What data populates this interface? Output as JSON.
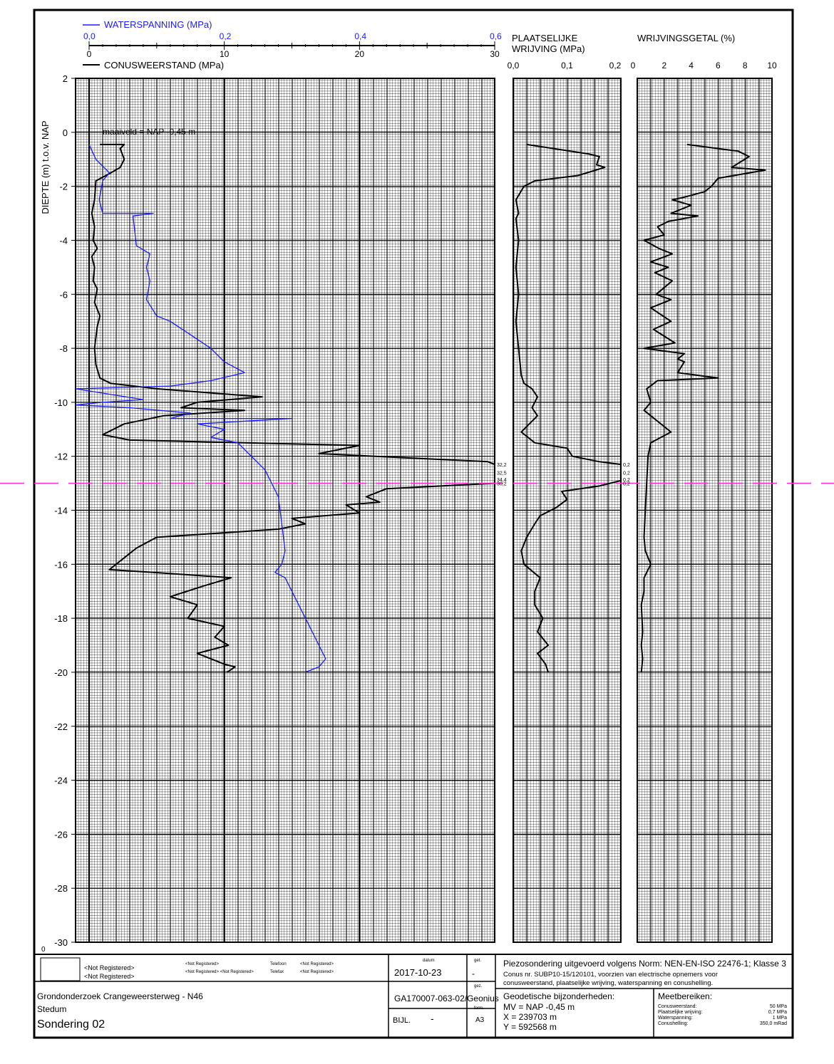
{
  "header": {
    "water_title": "WATERSPANNING (MPa)",
    "cone_title": "CONUSWEERSTAND (MPa)",
    "friction_title_1": "PLAATSELIJKE",
    "friction_title_2": "WRIJVING (MPa)",
    "ratio_title": "WRIJVINGSGETAL (%)",
    "depth_label": "DIEPTE (m) t.o.v. NAP",
    "maaiveld": "maaiveld = NAP -0,45 m"
  },
  "colors": {
    "water": "#1a1aff",
    "cone": "#000000",
    "marker": "#ff33cc"
  },
  "chart_data": {
    "type": "line",
    "depth_axis": {
      "label": "DIEPTE (m) t.o.v. NAP",
      "range": [
        2,
        -30
      ],
      "ticks": [
        "2",
        "0",
        "-2",
        "-4",
        "-6",
        "-8",
        "-10",
        "-12",
        "-14",
        "-16",
        "-18",
        "-20",
        "-22",
        "-24",
        "-26",
        "-28",
        "-30"
      ],
      "values": [
        2,
        0,
        -2,
        -4,
        -6,
        -8,
        -10,
        -12,
        -14,
        -16,
        -18,
        -20,
        -22,
        -24,
        -26,
        -28,
        -30
      ]
    },
    "cone_axis": {
      "label": "CONUSWEERSTAND (MPa)",
      "range": [
        0,
        30
      ],
      "ticks": [
        "0",
        "10",
        "20",
        "30"
      ]
    },
    "water_axis": {
      "label": "WATERSPANNING (MPa)",
      "range": [
        0,
        0.6
      ],
      "ticks": [
        "0,0",
        "0,2",
        "0,4",
        "0,6"
      ]
    },
    "friction_axis": {
      "label": "PLAATSELIJKE WRIJVING (MPa)",
      "range": [
        0,
        0.2
      ],
      "ticks": [
        "0,0",
        "0,1",
        "0,2"
      ]
    },
    "ratio_axis": {
      "label": "WRIJVINGSGETAL (%)",
      "range": [
        0,
        10
      ],
      "ticks": [
        "0",
        "2",
        "4",
        "6",
        "8",
        "10"
      ]
    },
    "series": [
      {
        "name": "CONUSWEERSTAND (MPa)",
        "points": [
          [
            0.8,
            -0.45
          ],
          [
            2.6,
            -0.45
          ],
          [
            2.3,
            -0.6
          ],
          [
            2.6,
            -1.0
          ],
          [
            2.3,
            -1.3
          ],
          [
            1.6,
            -1.5
          ],
          [
            0.5,
            -1.8
          ],
          [
            0.4,
            -2.5
          ],
          [
            0.2,
            -3.0
          ],
          [
            0.4,
            -3.5
          ],
          [
            0.3,
            -4.0
          ],
          [
            0.6,
            -4.3
          ],
          [
            0.2,
            -4.6
          ],
          [
            0.4,
            -5.0
          ],
          [
            0.3,
            -5.5
          ],
          [
            0.6,
            -5.8
          ],
          [
            0.4,
            -6.3
          ],
          [
            0.8,
            -6.8
          ],
          [
            0.6,
            -7.2
          ],
          [
            0.4,
            -8.0
          ],
          [
            0.5,
            -8.6
          ],
          [
            0.8,
            -9.1
          ],
          [
            1.6,
            -9.3
          ],
          [
            5.0,
            -9.5
          ],
          [
            12.8,
            -9.8
          ],
          [
            8.0,
            -10.0
          ],
          [
            6.8,
            -10.2
          ],
          [
            11.5,
            -10.3
          ],
          [
            5.5,
            -10.5
          ],
          [
            2.6,
            -10.8
          ],
          [
            1.0,
            -11.2
          ],
          [
            3.0,
            -11.4
          ],
          [
            20.0,
            -11.6
          ],
          [
            17.0,
            -11.9
          ],
          [
            29.5,
            -12.2
          ],
          [
            32.2,
            -12.3
          ],
          [
            32.5,
            -12.6
          ],
          [
            34.4,
            -12.9
          ],
          [
            30.2,
            -13.0
          ],
          [
            22.0,
            -13.2
          ],
          [
            20.5,
            -13.5
          ],
          [
            21.5,
            -13.7
          ],
          [
            19.0,
            -13.8
          ],
          [
            20.0,
            -14.1
          ],
          [
            15.0,
            -14.3
          ],
          [
            16.0,
            -14.5
          ],
          [
            14.0,
            -14.7
          ],
          [
            5.0,
            -15.0
          ],
          [
            3.5,
            -15.4
          ],
          [
            2.5,
            -15.8
          ],
          [
            1.5,
            -16.2
          ],
          [
            4.8,
            -16.3
          ],
          [
            10.5,
            -16.5
          ],
          [
            8.5,
            -16.8
          ],
          [
            6.0,
            -17.2
          ],
          [
            8.0,
            -17.5
          ],
          [
            7.3,
            -18.0
          ],
          [
            10.0,
            -18.3
          ],
          [
            9.3,
            -18.7
          ],
          [
            10.3,
            -19.0
          ],
          [
            8.0,
            -19.3
          ],
          [
            10.0,
            -19.7
          ],
          [
            10.8,
            -19.8
          ],
          [
            10.2,
            -20.0
          ]
        ]
      },
      {
        "name": "WATERSPANNING (MPa)",
        "points": [
          [
            0.0,
            -0.45
          ],
          [
            0.01,
            -1.0
          ],
          [
            0.03,
            -1.5
          ],
          [
            0.02,
            -1.8
          ],
          [
            0.015,
            -2.5
          ],
          [
            0.02,
            -3.0
          ],
          [
            0.095,
            -3.0
          ],
          [
            0.065,
            -3.1
          ],
          [
            0.07,
            -4.2
          ],
          [
            0.09,
            -4.5
          ],
          [
            0.085,
            -5.0
          ],
          [
            0.09,
            -5.5
          ],
          [
            0.085,
            -6.2
          ],
          [
            0.1,
            -6.8
          ],
          [
            0.12,
            -7.0
          ],
          [
            0.15,
            -7.5
          ],
          [
            0.18,
            -8.0
          ],
          [
            0.2,
            -8.5
          ],
          [
            0.23,
            -8.9
          ],
          [
            0.18,
            -9.2
          ],
          [
            0.12,
            -9.4
          ],
          [
            -0.02,
            -9.5
          ],
          [
            0.08,
            -9.9
          ],
          [
            0.02,
            -10.0
          ],
          [
            -0.02,
            -10.1
          ],
          [
            0.06,
            -10.2
          ],
          [
            0.15,
            -10.4
          ],
          [
            0.12,
            -10.6
          ],
          [
            0.3,
            -10.6
          ],
          [
            0.16,
            -10.8
          ],
          [
            0.2,
            -11.0
          ],
          [
            0.18,
            -11.3
          ],
          [
            0.22,
            -11.5
          ],
          [
            0.24,
            -12.0
          ],
          [
            0.26,
            -12.5
          ],
          [
            0.27,
            -13.0
          ],
          [
            0.28,
            -13.5
          ],
          [
            0.285,
            -14.5
          ],
          [
            0.29,
            -15.5
          ],
          [
            0.285,
            -16.0
          ],
          [
            0.275,
            -16.3
          ],
          [
            0.29,
            -16.5
          ],
          [
            0.3,
            -17.0
          ],
          [
            0.31,
            -17.5
          ],
          [
            0.32,
            -18.0
          ],
          [
            0.33,
            -18.5
          ],
          [
            0.34,
            -19.0
          ],
          [
            0.35,
            -19.5
          ],
          [
            0.34,
            -19.8
          ],
          [
            0.32,
            -20.0
          ]
        ]
      },
      {
        "name": "PLAATSELIJKE WRIJVING (MPa)",
        "points": [
          [
            0.025,
            -0.45
          ],
          [
            0.14,
            -0.8
          ],
          [
            0.16,
            -0.9
          ],
          [
            0.155,
            -1.2
          ],
          [
            0.17,
            -1.3
          ],
          [
            0.12,
            -1.6
          ],
          [
            0.04,
            -1.8
          ],
          [
            0.02,
            -2.0
          ],
          [
            0.005,
            -2.5
          ],
          [
            0.01,
            -3.0
          ],
          [
            0.005,
            -3.2
          ],
          [
            0.01,
            -4.0
          ],
          [
            0.005,
            -5.0
          ],
          [
            0.01,
            -6.0
          ],
          [
            0.005,
            -7.0
          ],
          [
            0.01,
            -8.0
          ],
          [
            0.015,
            -9.0
          ],
          [
            0.02,
            -9.3
          ],
          [
            0.035,
            -9.5
          ],
          [
            0.045,
            -9.8
          ],
          [
            0.035,
            -10.2
          ],
          [
            0.045,
            -10.5
          ],
          [
            0.03,
            -10.8
          ],
          [
            0.015,
            -11.1
          ],
          [
            0.04,
            -11.5
          ],
          [
            0.1,
            -11.7
          ],
          [
            0.11,
            -12.0
          ],
          [
            0.16,
            -12.2
          ],
          [
            0.2,
            -12.3
          ],
          [
            0.21,
            -12.6
          ],
          [
            0.2,
            -12.9
          ],
          [
            0.16,
            -13.1
          ],
          [
            0.09,
            -13.3
          ],
          [
            0.1,
            -13.6
          ],
          [
            0.08,
            -13.9
          ],
          [
            0.05,
            -14.2
          ],
          [
            0.04,
            -14.5
          ],
          [
            0.025,
            -15.0
          ],
          [
            0.015,
            -15.5
          ],
          [
            0.02,
            -16.0
          ],
          [
            0.05,
            -16.5
          ],
          [
            0.04,
            -17.0
          ],
          [
            0.04,
            -17.5
          ],
          [
            0.055,
            -18.0
          ],
          [
            0.045,
            -18.5
          ],
          [
            0.065,
            -19.0
          ],
          [
            0.045,
            -19.3
          ],
          [
            0.06,
            -19.7
          ],
          [
            0.065,
            -20.0
          ]
        ]
      },
      {
        "name": "WRIJVINGSGETAL (%)",
        "points": [
          [
            3.7,
            -0.45
          ],
          [
            7.5,
            -0.7
          ],
          [
            8.3,
            -0.9
          ],
          [
            7.0,
            -1.3
          ],
          [
            9.5,
            -1.4
          ],
          [
            6.0,
            -1.7
          ],
          [
            5.5,
            -2.0
          ],
          [
            5.0,
            -2.2
          ],
          [
            3.5,
            -2.4
          ],
          [
            2.6,
            -2.5
          ],
          [
            4.0,
            -2.7
          ],
          [
            2.5,
            -3.0
          ],
          [
            4.5,
            -3.1
          ],
          [
            2.3,
            -3.3
          ],
          [
            1.5,
            -3.5
          ],
          [
            2.0,
            -3.8
          ],
          [
            0.5,
            -4.0
          ],
          [
            1.6,
            -4.3
          ],
          [
            2.6,
            -4.5
          ],
          [
            1.0,
            -4.8
          ],
          [
            2.3,
            -5.0
          ],
          [
            1.3,
            -5.2
          ],
          [
            2.6,
            -5.5
          ],
          [
            1.4,
            -6.0
          ],
          [
            2.5,
            -6.2
          ],
          [
            1.0,
            -6.5
          ],
          [
            2.5,
            -7.0
          ],
          [
            1.2,
            -7.3
          ],
          [
            2.8,
            -7.8
          ],
          [
            0.5,
            -8.0
          ],
          [
            3.5,
            -8.2
          ],
          [
            3.0,
            -8.4
          ],
          [
            3.5,
            -8.5
          ],
          [
            3.0,
            -8.9
          ],
          [
            4.5,
            -9.0
          ],
          [
            6.0,
            -9.1
          ],
          [
            1.5,
            -9.2
          ],
          [
            0.7,
            -9.5
          ],
          [
            1.0,
            -10.0
          ],
          [
            0.5,
            -10.3
          ],
          [
            1.5,
            -10.7
          ],
          [
            2.5,
            -11.1
          ],
          [
            1.0,
            -11.5
          ],
          [
            0.8,
            -12.0
          ],
          [
            0.7,
            -13.0
          ],
          [
            0.6,
            -14.0
          ],
          [
            0.5,
            -15.0
          ],
          [
            0.6,
            -15.5
          ],
          [
            1.0,
            -16.0
          ],
          [
            0.5,
            -16.5
          ],
          [
            0.5,
            -17.0
          ],
          [
            0.3,
            -17.5
          ],
          [
            0.4,
            -18.5
          ],
          [
            0.3,
            -19.0
          ],
          [
            0.4,
            -19.5
          ],
          [
            0.3,
            -20.0
          ]
        ]
      }
    ],
    "marker_line": {
      "depth": -13.0
    },
    "offscale_labels": [
      {
        "depth": -12.3,
        "cone": "32,2",
        "friction": "0,2"
      },
      {
        "depth": -12.6,
        "cone": "32,5",
        "friction": "0,2"
      },
      {
        "depth": -12.85,
        "cone": "34,4",
        "friction": "0,2"
      },
      {
        "depth": -13.0,
        "cone": "30,2",
        "friction": "0,2"
      }
    ],
    "origin_label": "0"
  },
  "titleblock": {
    "left1": "<Not Registered>",
    "left2": "<Not Registered>",
    "mid1": "<Not Registered>",
    "mid2": "<Not Registered> <Not Registered>",
    "tel_label": "Telefoon",
    "fax_label": "Telefax",
    "tel_value": "<Not Registered>",
    "fax_value": "<Not Registered>",
    "project": "Grondonderzoek Crangeweersterweg - N46",
    "place": "Stedum",
    "sondering": "Sondering 02",
    "datum_label": "datum",
    "datum": "2017-10-23",
    "get_label": "get.",
    "get_value": "-",
    "gez_label": "gez.",
    "ref": "GA170007-063-02/Geonius",
    "bijl": "BIJL.",
    "bijl_value": "-",
    "form_label": "form.",
    "form_value": "A3",
    "norm1": "Piezosondering uitgevoerd volgens Norm: NEN-EN-ISO 22476-1; Klasse 3",
    "norm2": "Conus nr. SUBP10-15/120101, voorzien van electrische opnemers voor",
    "norm3": "conusweerstand, plaatselijke wrijving, waterspanning en conushelling.",
    "geo_title": "Geodetische bijzonderheden:",
    "geo1": "MV = NAP -0,45 m",
    "geo2": "X = 239703 m",
    "geo3": "Y = 592568 m",
    "meet_title": "Meetbereiken:",
    "meet": [
      {
        "label": "Conusweerstand:",
        "value": "50 MPa"
      },
      {
        "label": "Plaatselijke wrijving:",
        "value": "0,7 MPa"
      },
      {
        "label": "Waterspanning:",
        "value": "1 MPa"
      },
      {
        "label": "Conushelling:",
        "value": "350,0 mRad"
      }
    ]
  }
}
